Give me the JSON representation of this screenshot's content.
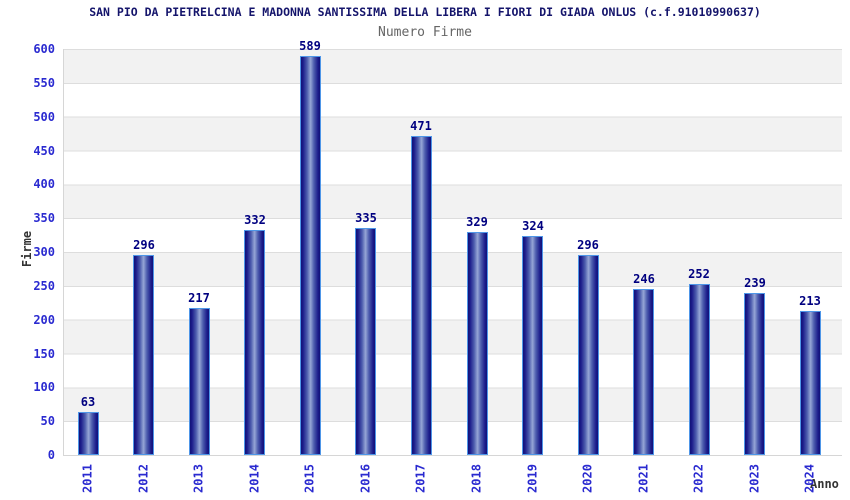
{
  "header": {
    "title": "SAN PIO DA PIETRELCINA E MADONNA SANTISSIMA DELLA LIBERA I FIORI DI GIADA ONLUS (c.f.91010990637)",
    "subtitle": "Numero Firme"
  },
  "chart_data": {
    "type": "bar",
    "title": "Numero Firme",
    "categories": [
      "2011",
      "2012",
      "2013",
      "2014",
      "2015",
      "2016",
      "2017",
      "2018",
      "2019",
      "2020",
      "2021",
      "2022",
      "2023",
      "2024"
    ],
    "values": [
      63,
      296,
      217,
      332,
      589,
      335,
      471,
      329,
      324,
      296,
      246,
      252,
      239,
      213
    ],
    "xlabel": "Anno",
    "ylabel": "Firme",
    "ylim": [
      0,
      600
    ],
    "ytick_step": 50,
    "grid": "horizontal gridlines every 50 with alternating gray/white bands",
    "legend": "none",
    "value_labels": "above each bar"
  },
  "colors": {
    "title_text": "#14146b",
    "subtitle_text": "#666666",
    "tick_label": "#2a2ad0",
    "value_label": "#000080",
    "axis_label": "#333333",
    "bar_edge": "#111178",
    "bar_highlight": "#96a6d6",
    "bar_border": "#4e96e8",
    "band_gray": "#f2f2f2",
    "gridline": "#dddddd",
    "background": "#ffffff"
  }
}
